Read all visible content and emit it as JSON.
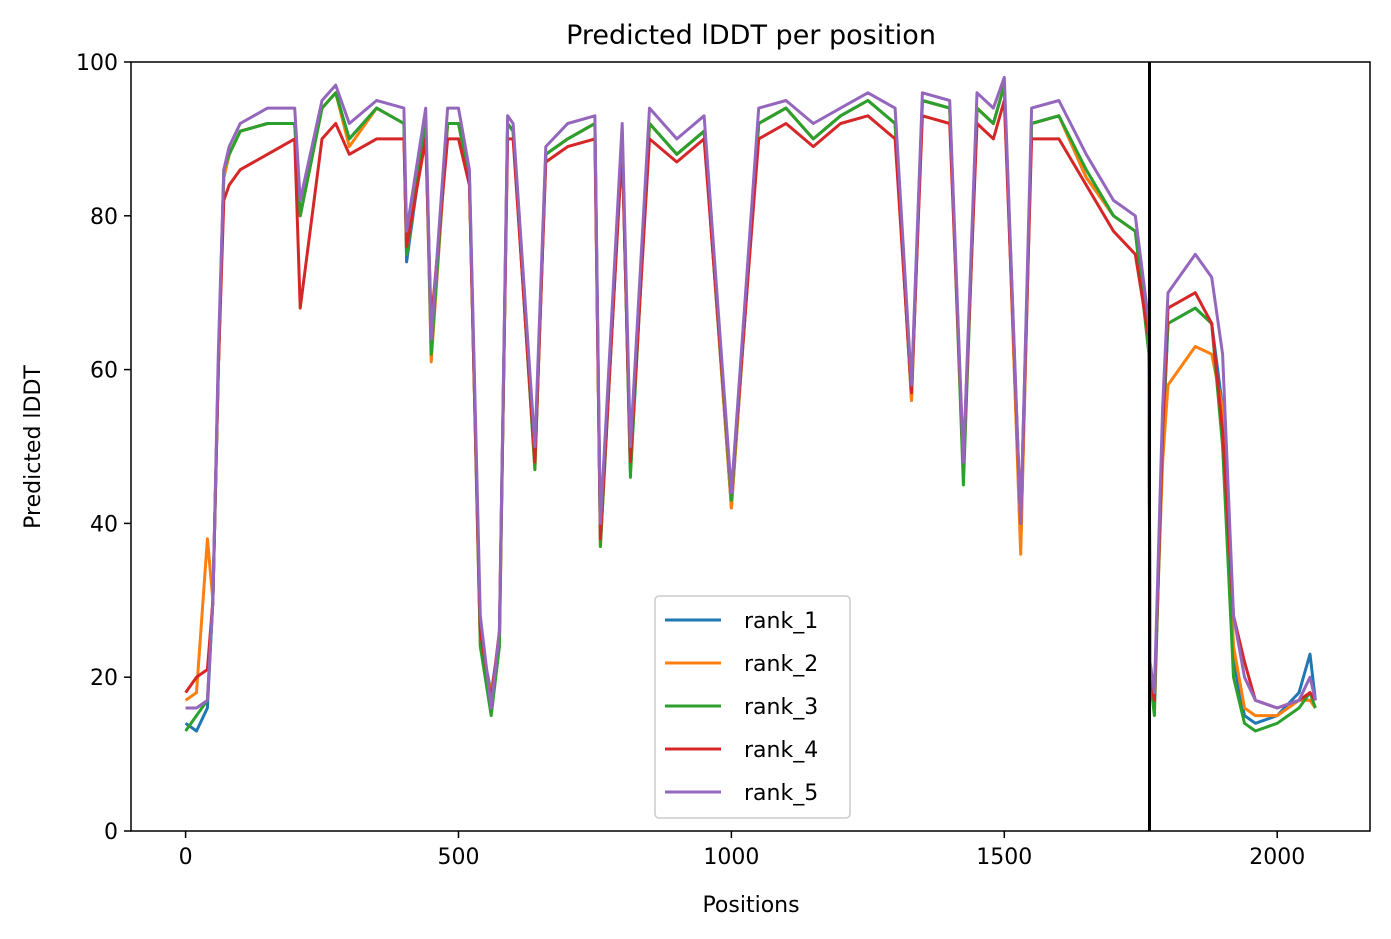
{
  "chart_data": {
    "type": "line",
    "title": "Predicted lDDT per position",
    "xlabel": "Positions",
    "ylabel": "Predicted lDDT",
    "xlim": [
      -100,
      2170
    ],
    "ylim": [
      0,
      100
    ],
    "xticks": [
      0,
      500,
      1000,
      1500,
      2000
    ],
    "yticks": [
      0,
      20,
      40,
      60,
      80,
      100
    ],
    "xtick_labels": [
      "0",
      "500",
      "1000",
      "1500",
      "2000"
    ],
    "ytick_labels": [
      "0",
      "20",
      "40",
      "60",
      "80",
      "100"
    ],
    "grid": false,
    "legend_position": "lower center",
    "vertical_line_x": 1766,
    "vertical_line_color": "#000000",
    "x": [
      0,
      20,
      40,
      50,
      60,
      70,
      80,
      100,
      150,
      200,
      210,
      250,
      275,
      300,
      350,
      400,
      405,
      440,
      450,
      480,
      500,
      520,
      540,
      560,
      575,
      590,
      600,
      640,
      660,
      700,
      750,
      760,
      800,
      815,
      850,
      900,
      950,
      1000,
      1050,
      1100,
      1150,
      1200,
      1250,
      1300,
      1330,
      1350,
      1400,
      1425,
      1450,
      1480,
      1500,
      1530,
      1550,
      1600,
      1650,
      1700,
      1740,
      1765,
      1767,
      1775,
      1790,
      1800,
      1850,
      1880,
      1900,
      1920,
      1940,
      1960,
      2000,
      2040,
      2060,
      2070
    ],
    "series": [
      {
        "name": "rank_1",
        "color": "#1f77b4",
        "values": [
          14,
          13,
          16,
          30,
          60,
          85,
          88,
          91,
          92,
          92,
          80,
          94,
          96,
          90,
          94,
          92,
          74,
          92,
          64,
          92,
          92,
          85,
          25,
          18,
          25,
          92,
          91,
          48,
          88,
          90,
          92,
          38,
          90,
          47,
          92,
          88,
          91,
          42,
          92,
          94,
          90,
          93,
          95,
          92,
          56,
          95,
          94,
          47,
          94,
          92,
          97,
          37,
          92,
          93,
          85,
          80,
          78,
          64,
          20,
          17,
          50,
          66,
          68,
          66,
          55,
          22,
          15,
          14,
          15,
          18,
          23,
          17
        ]
      },
      {
        "name": "rank_2",
        "color": "#ff7f0e",
        "values": [
          17,
          18,
          38,
          30,
          60,
          85,
          88,
          91,
          92,
          92,
          80,
          94,
          96,
          89,
          94,
          92,
          75,
          92,
          61,
          92,
          92,
          85,
          24,
          18,
          24,
          92,
          91,
          47,
          88,
          90,
          92,
          37,
          90,
          47,
          92,
          88,
          91,
          42,
          92,
          94,
          90,
          93,
          95,
          92,
          56,
          95,
          94,
          47,
          94,
          92,
          97,
          36,
          92,
          93,
          85,
          80,
          78,
          64,
          20,
          18,
          48,
          58,
          63,
          62,
          55,
          24,
          16,
          15,
          15,
          17,
          17,
          16
        ]
      },
      {
        "name": "rank_3",
        "color": "#2ca02c",
        "values": [
          13,
          15,
          17,
          30,
          60,
          86,
          88,
          91,
          92,
          92,
          80,
          94,
          96,
          90,
          94,
          92,
          75,
          92,
          62,
          92,
          92,
          85,
          24,
          15,
          24,
          92,
          91,
          47,
          88,
          90,
          92,
          37,
          90,
          46,
          92,
          88,
          91,
          43,
          92,
          94,
          90,
          93,
          95,
          92,
          57,
          95,
          94,
          45,
          94,
          92,
          97,
          40,
          92,
          93,
          86,
          80,
          78,
          62,
          20,
          15,
          52,
          66,
          68,
          66,
          50,
          20,
          14,
          13,
          14,
          16,
          18,
          16
        ]
      },
      {
        "name": "rank_4",
        "color": "#d62728",
        "values": [
          18,
          20,
          21,
          30,
          60,
          82,
          84,
          86,
          88,
          90,
          68,
          90,
          92,
          88,
          90,
          90,
          76,
          90,
          66,
          90,
          90,
          84,
          26,
          17,
          26,
          90,
          90,
          48,
          87,
          89,
          90,
          38,
          89,
          48,
          90,
          87,
          90,
          44,
          90,
          92,
          89,
          92,
          93,
          90,
          57,
          93,
          92,
          48,
          92,
          90,
          95,
          40,
          90,
          90,
          84,
          78,
          75,
          64,
          20,
          17,
          52,
          68,
          70,
          66,
          52,
          28,
          22,
          17,
          16,
          17,
          18,
          17
        ]
      },
      {
        "name": "rank_5",
        "color": "#9467bd",
        "values": [
          16,
          16,
          17,
          30,
          62,
          86,
          89,
          92,
          94,
          94,
          82,
          95,
          97,
          92,
          95,
          94,
          78,
          94,
          64,
          94,
          94,
          86,
          28,
          16,
          26,
          93,
          92,
          50,
          89,
          92,
          93,
          40,
          92,
          50,
          94,
          90,
          93,
          44,
          94,
          95,
          92,
          94,
          96,
          94,
          58,
          96,
          95,
          48,
          96,
          94,
          98,
          40,
          94,
          95,
          88,
          82,
          80,
          66,
          22,
          18,
          55,
          70,
          75,
          72,
          62,
          28,
          20,
          17,
          16,
          17,
          20,
          17
        ]
      }
    ]
  }
}
